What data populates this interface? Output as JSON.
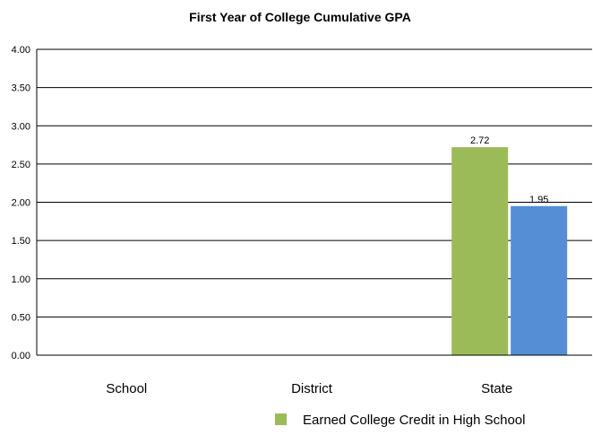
{
  "chart_data": {
    "type": "bar",
    "title": "First Year of College Cumulative GPA",
    "categories": [
      "School",
      "District",
      "State"
    ],
    "series": [
      {
        "name": "Earned College Credit in High School",
        "color": "#9bbb59",
        "values": [
          null,
          null,
          2.72
        ]
      },
      {
        "color": "#558ed5",
        "values": [
          null,
          null,
          1.95
        ]
      }
    ],
    "ylim": [
      0,
      4
    ],
    "yticks": [
      "0.00",
      "0.50",
      "1.00",
      "1.50",
      "2.00",
      "2.50",
      "3.00",
      "3.50",
      "4.00"
    ],
    "grid": true,
    "legend_position": "bottom"
  }
}
